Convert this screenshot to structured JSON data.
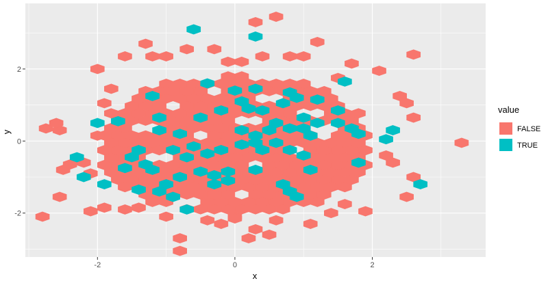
{
  "chart_data": {
    "type": "hexbin",
    "xlabel": "x",
    "ylabel": "y",
    "xlim": [
      -3.05,
      3.65
    ],
    "ylim": [
      -3.22,
      3.82
    ],
    "x_ticks": [
      -2,
      0,
      2
    ],
    "x_tick_labels": [
      "-2",
      "0",
      "2"
    ],
    "y_ticks": [
      -2,
      0,
      2
    ],
    "y_tick_labels": [
      "-2",
      "0",
      "2"
    ],
    "grid": true,
    "legend": {
      "title": "value",
      "position": "right",
      "entries": [
        {
          "label": "FALSE",
          "color": "#F8766D"
        },
        {
          "label": "TRUE",
          "color": "#00BFC4"
        }
      ]
    },
    "colors": {
      "FALSE": "#F8766D",
      "TRUE": "#00BFC4",
      "panel": "#EBEBEB",
      "grid": "#FFFFFF"
    },
    "hex_spacing": {
      "dx": 0.2,
      "dy": 0.205
    },
    "core_region": {
      "x_range": [
        -2.0,
        2.0
      ],
      "y_range": [
        -2.1,
        1.9
      ]
    },
    "empty_bins": [
      [
        -1.8,
        1.85
      ],
      [
        -1.2,
        1.85
      ],
      [
        -0.4,
        1.85
      ],
      [
        0.4,
        1.85
      ],
      [
        1.2,
        1.85
      ],
      [
        1.8,
        1.85
      ],
      [
        1.9,
        -1.85
      ],
      [
        -1.9,
        -1.85
      ],
      [
        -1.5,
        -1.7
      ],
      [
        1.5,
        -1.75
      ],
      [
        -0.3,
        1.45
      ],
      [
        0.5,
        1.25
      ],
      [
        -0.9,
        0.9
      ],
      [
        1.1,
        0.8
      ],
      [
        -0.5,
        0.2
      ],
      [
        0.3,
        -0.6
      ],
      [
        -1.1,
        -0.4
      ],
      [
        0.9,
        -0.2
      ],
      [
        0.1,
        -1.5
      ],
      [
        -0.7,
        -1.6
      ],
      [
        1.3,
        0.25
      ],
      [
        -1.3,
        0.4
      ],
      [
        0.2,
        0.6
      ]
    ],
    "outlier_bins": [
      [
        -2.8,
        -2.1
      ],
      [
        -2.55,
        -1.55
      ],
      [
        -2.5,
        -0.8
      ],
      [
        -2.55,
        0.3
      ],
      [
        -2.6,
        0.5
      ],
      [
        -2.75,
        0.35
      ],
      [
        -2.4,
        -0.65
      ],
      [
        -2.0,
        2.0
      ],
      [
        -1.6,
        2.35
      ],
      [
        -1.3,
        2.7
      ],
      [
        -1.2,
        2.35
      ],
      [
        -1.0,
        2.35
      ],
      [
        -0.7,
        2.55
      ],
      [
        -0.3,
        2.55
      ],
      [
        0.3,
        3.3
      ],
      [
        0.6,
        3.45
      ],
      [
        0.4,
        2.35
      ],
      [
        0.8,
        2.35
      ],
      [
        1.0,
        2.35
      ],
      [
        1.2,
        2.75
      ],
      [
        1.7,
        2.15
      ],
      [
        2.1,
        1.95
      ],
      [
        2.6,
        2.4
      ],
      [
        2.4,
        1.25
      ],
      [
        2.5,
        1.05
      ],
      [
        2.6,
        0.65
      ],
      [
        2.6,
        -1.0
      ],
      [
        2.5,
        -1.55
      ],
      [
        3.3,
        -0.05
      ],
      [
        -0.8,
        -2.7
      ],
      [
        -0.8,
        -3.05
      ],
      [
        0.2,
        -2.7
      ],
      [
        0.5,
        -2.6
      ],
      [
        0.3,
        -2.45
      ],
      [
        -1.9,
        -1.85
      ],
      [
        -2.1,
        -1.95
      ],
      [
        -1.6,
        -1.9
      ],
      [
        -1.0,
        -2.1
      ],
      [
        1.9,
        -1.95
      ],
      [
        1.1,
        -2.3
      ],
      [
        1.4,
        -2.0
      ],
      [
        -0.2,
        -2.3
      ],
      [
        -0.4,
        -2.2
      ],
      [
        0.0,
        -2.15
      ],
      [
        0.6,
        -2.2
      ],
      [
        -1.4,
        -1.85
      ],
      [
        1.6,
        -1.75
      ],
      [
        2.3,
        -0.6
      ],
      [
        2.2,
        -0.4
      ],
      [
        -2.2,
        -0.6
      ],
      [
        -2.1,
        -0.9
      ],
      [
        -2.0,
        0.15
      ],
      [
        -1.9,
        1.05
      ],
      [
        1.5,
        1.75
      ],
      [
        -1.8,
        1.45
      ],
      [
        -0.1,
        2.2
      ],
      [
        0.1,
        2.2
      ]
    ],
    "true_bins": [
      [
        -0.6,
        3.1
      ],
      [
        0.3,
        2.9
      ],
      [
        -0.4,
        1.6
      ],
      [
        1.6,
        1.65
      ],
      [
        -1.2,
        1.25
      ],
      [
        0.0,
        1.4
      ],
      [
        0.1,
        1.1
      ],
      [
        0.3,
        1.45
      ],
      [
        0.2,
        0.9
      ],
      [
        0.4,
        0.85
      ],
      [
        0.8,
        1.35
      ],
      [
        0.9,
        1.2
      ],
      [
        0.7,
        1.05
      ],
      [
        1.2,
        1.15
      ],
      [
        1.5,
        0.85
      ],
      [
        1.0,
        0.65
      ],
      [
        -0.2,
        0.85
      ],
      [
        -0.5,
        0.65
      ],
      [
        -1.1,
        0.65
      ],
      [
        -1.7,
        0.55
      ],
      [
        -2.0,
        0.5
      ],
      [
        -1.1,
        0.3
      ],
      [
        -0.8,
        0.2
      ],
      [
        0.1,
        0.3
      ],
      [
        0.3,
        0.15
      ],
      [
        0.5,
        0.3
      ],
      [
        0.6,
        0.5
      ],
      [
        0.8,
        0.35
      ],
      [
        1.0,
        0.35
      ],
      [
        1.1,
        0.15
      ],
      [
        1.2,
        0.5
      ],
      [
        1.5,
        0.5
      ],
      [
        1.7,
        0.35
      ],
      [
        1.8,
        0.2
      ],
      [
        2.3,
        0.3
      ],
      [
        2.2,
        0.05
      ],
      [
        -2.3,
        -0.45
      ],
      [
        -2.2,
        -1.0
      ],
      [
        -1.9,
        -1.2
      ],
      [
        -1.4,
        -0.25
      ],
      [
        -1.5,
        -0.45
      ],
      [
        -1.3,
        -0.65
      ],
      [
        -1.6,
        -0.75
      ],
      [
        -1.2,
        -0.8
      ],
      [
        -0.9,
        -0.25
      ],
      [
        -0.7,
        -0.45
      ],
      [
        -0.4,
        -0.35
      ],
      [
        -0.5,
        -0.85
      ],
      [
        -0.3,
        -0.95
      ],
      [
        -0.1,
        -0.85
      ],
      [
        -0.2,
        -0.25
      ],
      [
        0.1,
        -0.1
      ],
      [
        0.3,
        -0.05
      ],
      [
        0.4,
        -0.25
      ],
      [
        0.6,
        -0.05
      ],
      [
        0.8,
        -0.25
      ],
      [
        1.0,
        -0.4
      ],
      [
        1.1,
        -0.8
      ],
      [
        0.3,
        -0.8
      ],
      [
        -0.1,
        -1.1
      ],
      [
        -0.3,
        -1.2
      ],
      [
        -0.8,
        -1.0
      ],
      [
        -1.0,
        -1.2
      ],
      [
        -1.4,
        -1.35
      ],
      [
        -1.1,
        -1.4
      ],
      [
        -0.9,
        -1.55
      ],
      [
        -0.7,
        -1.9
      ],
      [
        0.7,
        -1.2
      ],
      [
        0.8,
        -1.4
      ],
      [
        0.9,
        -1.55
      ],
      [
        1.8,
        -0.6
      ],
      [
        2.7,
        -1.2
      ],
      [
        -0.6,
        -0.15
      ]
    ]
  }
}
